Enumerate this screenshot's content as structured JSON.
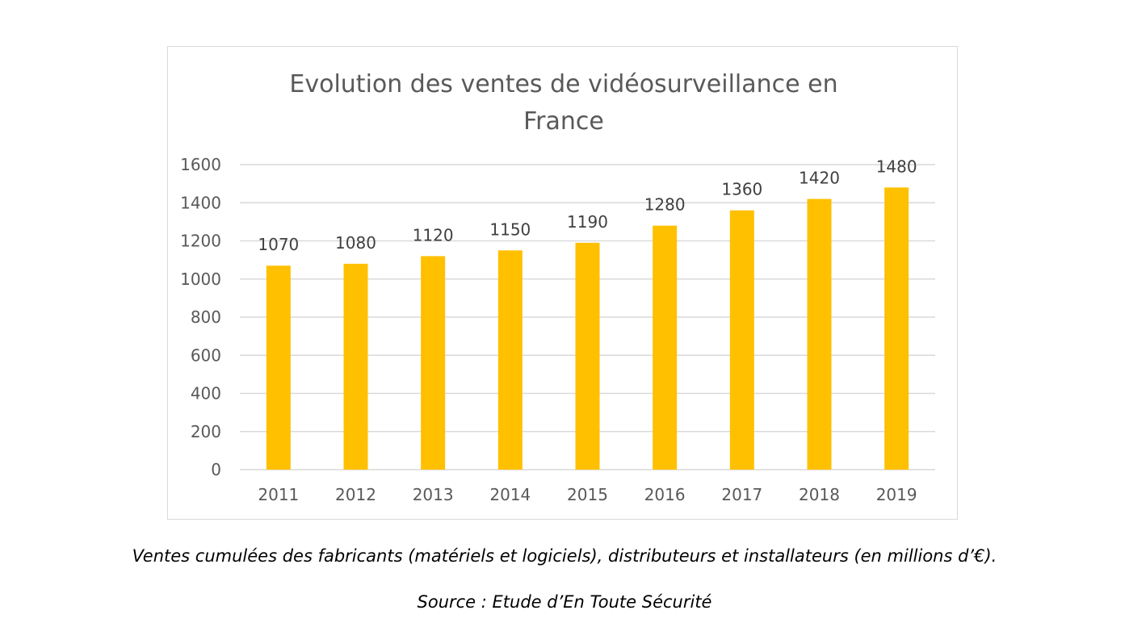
{
  "chart_data": {
    "type": "bar",
    "title": "Evolution des ventes de vidéosurveillance en France",
    "title_lines": [
      "Evolution des ventes de vidéosurveillance en",
      "France"
    ],
    "categories": [
      "2011",
      "2012",
      "2013",
      "2014",
      "2015",
      "2016",
      "2017",
      "2018",
      "2019"
    ],
    "values": [
      1070,
      1080,
      1120,
      1150,
      1190,
      1280,
      1360,
      1420,
      1480
    ],
    "data_labels": [
      "1070",
      "1080",
      "1120",
      "1150",
      "1190",
      "1280",
      "1360",
      "1420",
      "1480"
    ],
    "yticks": [
      "0",
      "200",
      "400",
      "600",
      "800",
      "1000",
      "1200",
      "1400",
      "1600"
    ],
    "ylim": [
      0,
      1600
    ],
    "xlabel": "",
    "ylabel": "",
    "grid": true,
    "legend": "none",
    "bar_color": "#FFC000"
  },
  "captions": {
    "note": "Ventes cumulées des fabricants (matériels et logiciels), distributeurs et installateurs (en millions d’€).",
    "source": "Source : Etude d’En Toute Sécurité"
  }
}
